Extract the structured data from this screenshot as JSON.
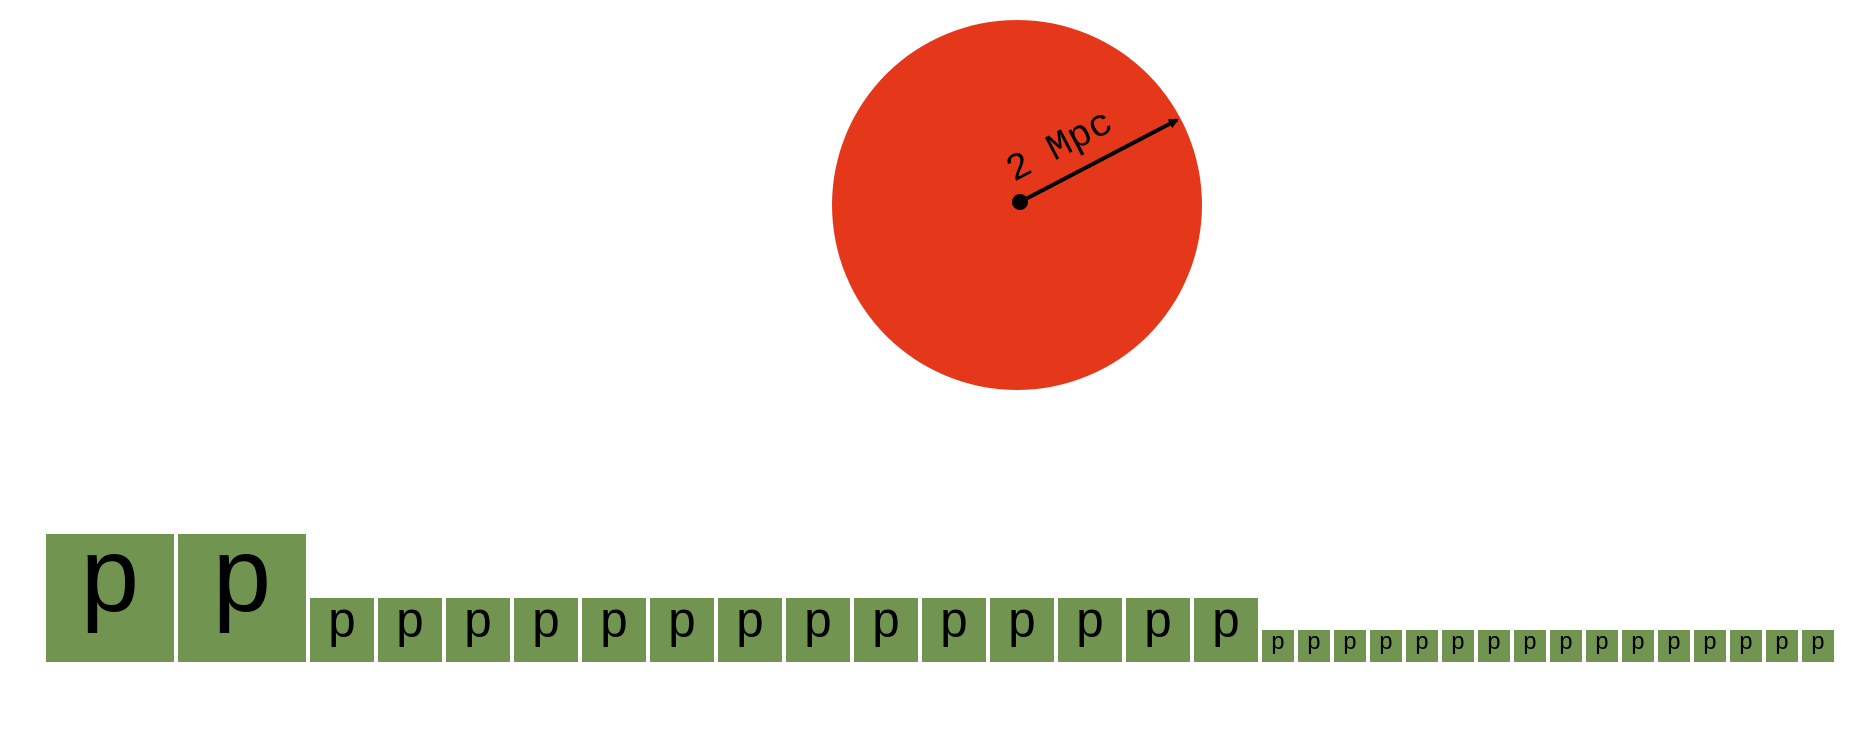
{
  "colors": {
    "background": "#ffffff",
    "sphere": "#e5381b",
    "box": "#729451",
    "ink": "#000000"
  },
  "sphere": {
    "radius_label": "2 Mpc"
  },
  "box_rows": [
    {
      "label": "p",
      "count": 2
    },
    {
      "label": "p",
      "count": 14
    },
    {
      "label": "p",
      "count": 16
    }
  ]
}
